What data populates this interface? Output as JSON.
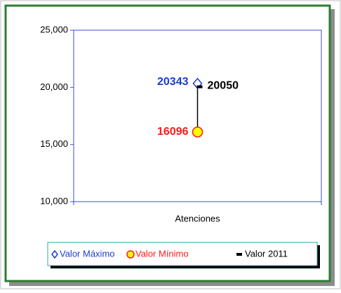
{
  "chart_data": {
    "type": "hilo",
    "categories": [
      "Atenciones"
    ],
    "series": [
      {
        "name": "Valor Máximo",
        "color": "#1c3fc4",
        "values": [
          20343
        ]
      },
      {
        "name": "Valor Mínimo",
        "color": "#ff1a1a",
        "values": [
          16096
        ]
      },
      {
        "name": "Valor 2011",
        "color": "#000000",
        "values": [
          20050
        ]
      }
    ],
    "ylim": [
      10000,
      25000
    ],
    "yticks": [
      {
        "value": 10000,
        "label": "10,000"
      },
      {
        "value": 15000,
        "label": "15,000"
      },
      {
        "value": 20000,
        "label": "20,000"
      },
      {
        "value": 25000,
        "label": "25,000"
      }
    ],
    "grid": false,
    "legend": "bottom"
  }
}
